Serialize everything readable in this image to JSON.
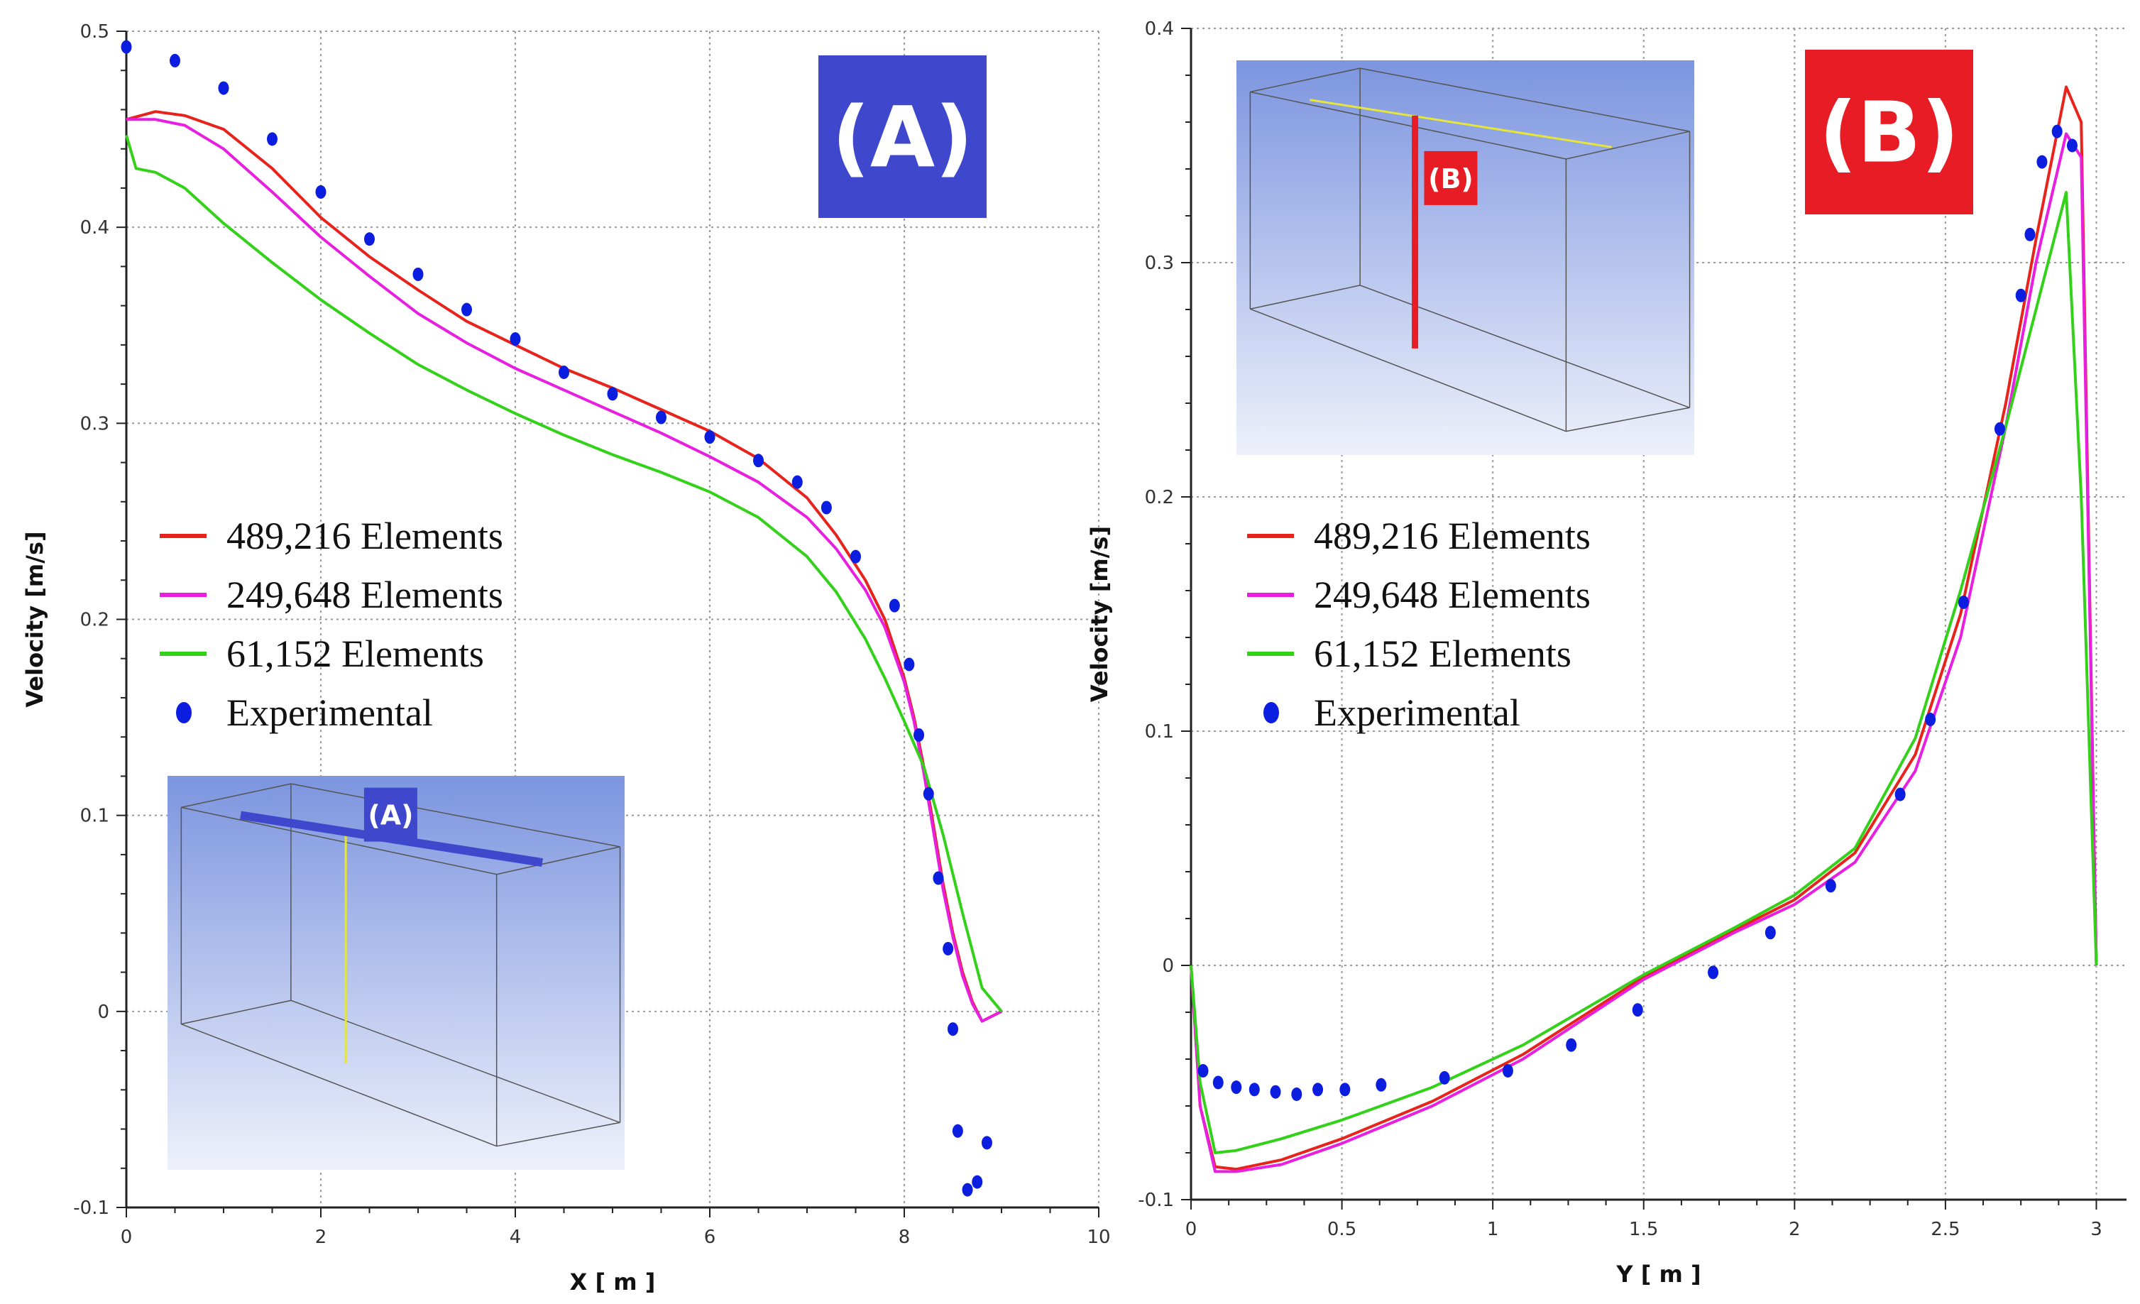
{
  "chart_data": [
    {
      "type": "line",
      "badge": "(A)",
      "badge_color": "#3f48cc",
      "xlabel": "X [ m ]",
      "ylabel": "Velocity [m/s]",
      "xlim": [
        0,
        10
      ],
      "ylim": [
        -0.1,
        0.5
      ],
      "xticks": [
        "0",
        "2",
        "4",
        "6",
        "8",
        "10"
      ],
      "yticks": [
        "-0.1",
        "0",
        "0.1",
        "0.2",
        "0.3",
        "0.4",
        "0.5"
      ],
      "grid": true,
      "legend_position": "middle-left",
      "inset": {
        "label": "(A)",
        "position": "bottom-left",
        "line": "horizontal"
      },
      "series": [
        {
          "name": "489,216 Elements",
          "color": "#e8231c",
          "x": [
            0,
            0.3,
            0.6,
            1.0,
            1.5,
            2.0,
            2.5,
            3.0,
            3.5,
            4.0,
            4.5,
            5.0,
            5.5,
            6.0,
            6.5,
            7.0,
            7.3,
            7.6,
            7.8,
            8.0,
            8.1,
            8.2,
            8.3,
            8.4,
            8.5,
            8.6,
            8.7,
            8.8,
            9.0
          ],
          "y": [
            0.455,
            0.459,
            0.457,
            0.45,
            0.43,
            0.405,
            0.385,
            0.368,
            0.352,
            0.34,
            0.328,
            0.318,
            0.307,
            0.296,
            0.282,
            0.262,
            0.243,
            0.22,
            0.2,
            0.17,
            0.15,
            0.125,
            0.095,
            0.065,
            0.04,
            0.02,
            0.005,
            -0.005,
            0.0
          ]
        },
        {
          "name": "249,648 Elements",
          "color": "#e81ee0",
          "x": [
            0,
            0.3,
            0.6,
            1.0,
            1.5,
            2.0,
            2.5,
            3.0,
            3.5,
            4.0,
            4.5,
            5.0,
            5.5,
            6.0,
            6.5,
            7.0,
            7.3,
            7.6,
            7.8,
            8.0,
            8.1,
            8.2,
            8.3,
            8.4,
            8.5,
            8.6,
            8.7,
            8.8,
            9.0
          ],
          "y": [
            0.455,
            0.455,
            0.452,
            0.44,
            0.418,
            0.395,
            0.375,
            0.356,
            0.341,
            0.328,
            0.317,
            0.306,
            0.295,
            0.283,
            0.27,
            0.252,
            0.236,
            0.215,
            0.196,
            0.168,
            0.148,
            0.122,
            0.092,
            0.062,
            0.038,
            0.018,
            0.004,
            -0.005,
            0.0
          ]
        },
        {
          "name": "61,152 Elements",
          "color": "#33d11a",
          "x": [
            0,
            0.1,
            0.3,
            0.6,
            1.0,
            1.5,
            2.0,
            2.5,
            3.0,
            3.5,
            4.0,
            4.5,
            5.0,
            5.5,
            6.0,
            6.5,
            7.0,
            7.3,
            7.6,
            7.8,
            8.0,
            8.2,
            8.4,
            8.6,
            8.8,
            9.0
          ],
          "y": [
            0.447,
            0.43,
            0.428,
            0.42,
            0.402,
            0.382,
            0.363,
            0.346,
            0.33,
            0.317,
            0.305,
            0.294,
            0.284,
            0.275,
            0.265,
            0.252,
            0.232,
            0.214,
            0.19,
            0.17,
            0.148,
            0.125,
            0.09,
            0.05,
            0.012,
            0.0
          ]
        },
        {
          "name": "Experimental",
          "color": "#0b1ee0",
          "marker": "dot",
          "x": [
            0,
            0.5,
            1.0,
            1.5,
            2.0,
            2.5,
            3.0,
            3.5,
            4.0,
            4.5,
            5.0,
            5.5,
            6.0,
            6.5,
            6.9,
            7.2,
            7.5,
            7.9,
            8.05,
            8.15,
            8.25,
            8.35,
            8.45,
            8.5,
            8.55,
            8.65,
            8.75,
            8.85
          ],
          "y": [
            0.492,
            0.485,
            0.471,
            0.445,
            0.418,
            0.394,
            0.376,
            0.358,
            0.343,
            0.326,
            0.315,
            0.303,
            0.293,
            0.281,
            0.27,
            0.257,
            0.232,
            0.207,
            0.177,
            0.141,
            0.111,
            0.068,
            0.032,
            -0.009,
            -0.061,
            -0.091,
            -0.087,
            -0.067
          ]
        }
      ]
    },
    {
      "type": "line",
      "badge": "(B)",
      "badge_color": "#e81c24",
      "xlabel": "Y [ m ]",
      "ylabel": "Velocity [m/s]",
      "xlim": [
        0,
        3.1
      ],
      "ylim": [
        -0.1,
        0.4
      ],
      "xticks": [
        "0",
        "0.5",
        "1",
        "1.5",
        "2",
        "2.5",
        "3"
      ],
      "yticks": [
        "-0.1",
        "0",
        "0.1",
        "0.2",
        "0.3",
        "0.4"
      ],
      "grid": true,
      "legend_position": "middle-left",
      "inset": {
        "label": "(B)",
        "position": "top-left",
        "line": "vertical"
      },
      "series": [
        {
          "name": "489,216 Elements",
          "color": "#e8231c",
          "x": [
            0,
            0.03,
            0.08,
            0.15,
            0.3,
            0.5,
            0.8,
            1.1,
            1.5,
            1.8,
            2.0,
            2.2,
            2.4,
            2.55,
            2.7,
            2.8,
            2.9,
            2.95,
            3.0
          ],
          "y": [
            0.0,
            -0.06,
            -0.086,
            -0.087,
            -0.083,
            -0.074,
            -0.058,
            -0.038,
            -0.005,
            0.015,
            0.028,
            0.048,
            0.09,
            0.15,
            0.24,
            0.31,
            0.375,
            0.36,
            0.0
          ]
        },
        {
          "name": "249,648 Elements",
          "color": "#e81ee0",
          "x": [
            0,
            0.03,
            0.08,
            0.15,
            0.3,
            0.5,
            0.8,
            1.1,
            1.5,
            1.8,
            2.0,
            2.2,
            2.4,
            2.55,
            2.7,
            2.8,
            2.9,
            2.95,
            3.0
          ],
          "y": [
            0.0,
            -0.06,
            -0.088,
            -0.088,
            -0.085,
            -0.076,
            -0.06,
            -0.04,
            -0.006,
            0.014,
            0.026,
            0.044,
            0.083,
            0.14,
            0.23,
            0.3,
            0.355,
            0.345,
            0.0
          ]
        },
        {
          "name": "61,152 Elements",
          "color": "#33d11a",
          "x": [
            0,
            0.03,
            0.08,
            0.15,
            0.3,
            0.5,
            0.8,
            1.1,
            1.5,
            1.8,
            2.0,
            2.2,
            2.4,
            2.55,
            2.7,
            2.8,
            2.9,
            2.95,
            3.0
          ],
          "y": [
            0.0,
            -0.05,
            -0.08,
            -0.079,
            -0.074,
            -0.066,
            -0.052,
            -0.034,
            -0.004,
            0.016,
            0.03,
            0.05,
            0.097,
            0.16,
            0.23,
            0.28,
            0.33,
            0.2,
            0.0
          ]
        },
        {
          "name": "Experimental",
          "color": "#0b1ee0",
          "marker": "dot",
          "x": [
            0.04,
            0.09,
            0.15,
            0.21,
            0.28,
            0.35,
            0.42,
            0.51,
            0.63,
            0.84,
            1.05,
            1.26,
            1.48,
            1.73,
            1.92,
            2.12,
            2.35,
            2.45,
            2.56,
            2.68,
            2.75,
            2.78,
            2.82,
            2.87,
            2.92
          ],
          "y": [
            -0.045,
            -0.05,
            -0.052,
            -0.053,
            -0.054,
            -0.055,
            -0.053,
            -0.053,
            -0.051,
            -0.048,
            -0.045,
            -0.034,
            -0.019,
            -0.003,
            0.014,
            0.034,
            0.073,
            0.105,
            0.155,
            0.229,
            0.286,
            0.312,
            0.343,
            0.356,
            0.35
          ]
        }
      ]
    }
  ]
}
